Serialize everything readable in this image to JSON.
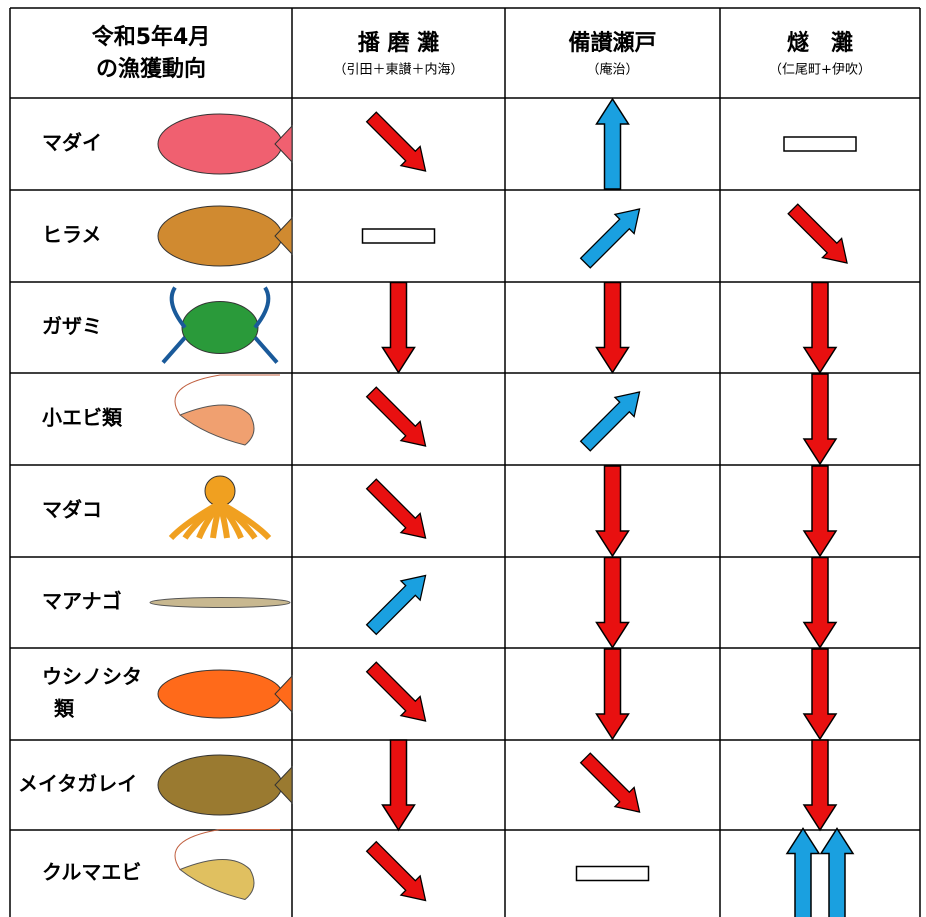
{
  "header": {
    "title_lines": [
      "令和5年4月",
      "の漁獲動向"
    ],
    "columns": [
      {
        "name": "播 磨 灘",
        "note": "（引田＋東讃＋内海）"
      },
      {
        "name": "備讃瀬戸",
        "note": "（庵治）"
      },
      {
        "name": "燧　灘",
        "note": "（仁尾町+伊吹）"
      }
    ]
  },
  "rows": [
    {
      "name_lines": [
        "マダイ"
      ]
    },
    {
      "name_lines": [
        "ヒラメ"
      ]
    },
    {
      "name_lines": [
        "ガザミ"
      ]
    },
    {
      "name_lines": [
        "小エビ類"
      ]
    },
    {
      "name_lines": [
        "マダコ"
      ]
    },
    {
      "name_lines": [
        "マアナゴ"
      ]
    },
    {
      "name_lines": [
        "ウシノシタ",
        "類"
      ]
    },
    {
      "name_lines": [
        "メイタガレイ"
      ]
    },
    {
      "name_lines": [
        "クルマエビ"
      ]
    }
  ]
}
